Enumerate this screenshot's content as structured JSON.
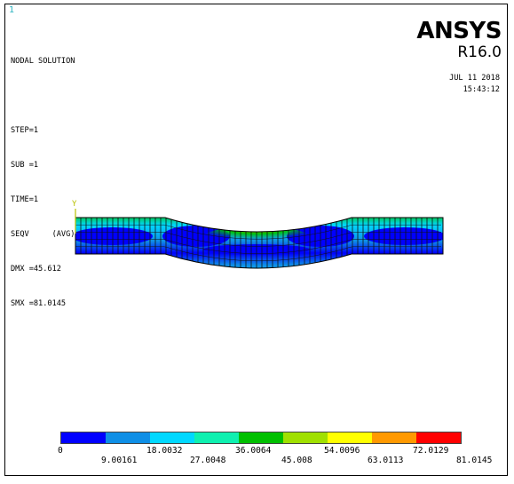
{
  "window": {
    "id": "1"
  },
  "info": {
    "lines": [
      "NODAL SOLUTION",
      "",
      "STEP=1",
      "SUB =1",
      "TIME=1",
      "SEQV     (AVG)",
      "DMX =45.612",
      "SMX =81.0145"
    ]
  },
  "brand": {
    "logo": "ANSYS",
    "release": "R16.0"
  },
  "timestamp": {
    "date": "JUL 11 2018",
    "time": "15:43:12"
  },
  "axis": {
    "y_label": "Y"
  },
  "legend": {
    "colors": [
      "#0000ff",
      "#0f8fe6",
      "#00d8ff",
      "#0ff0b0",
      "#00c000",
      "#a0e000",
      "#ffff00",
      "#ff9900",
      "#ff0000"
    ],
    "top_values": [
      "0",
      "18.0032",
      "36.0064",
      "54.0096",
      "72.0129"
    ],
    "bottom_values": [
      "9.00161",
      "27.0048",
      "45.008",
      "63.0113",
      "81.0145"
    ]
  }
}
